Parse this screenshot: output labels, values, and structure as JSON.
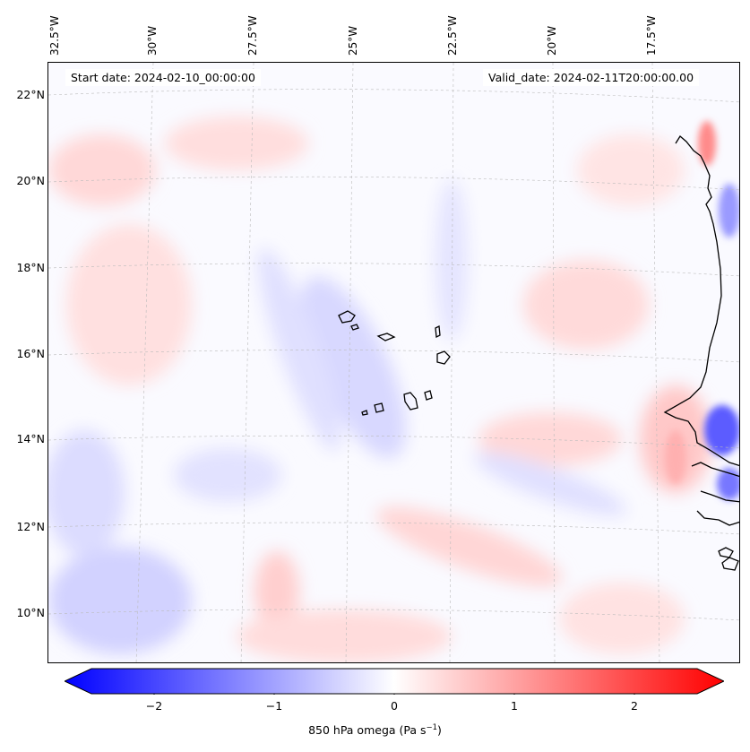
{
  "header": {
    "start_date": "Start date: 2024-02-10_00:00:00",
    "valid_date": "Valid_date: 2024-02-11T20:00:00.00"
  },
  "longitude_labels": [
    "32.5°W",
    "30°W",
    "27.5°W",
    "25°W",
    "22.5°W",
    "20°W",
    "17.5°W"
  ],
  "latitude_labels": [
    "22°N",
    "20°N",
    "18°N",
    "16°N",
    "14°N",
    "12°N",
    "10°N"
  ],
  "colorbar": {
    "tick_labels": [
      "−2",
      "−1",
      "0",
      "1",
      "2"
    ],
    "label_main": "850 hPa omega (Pa s",
    "label_exp": "−1",
    "label_end": ")",
    "min": -2.6,
    "max": 2.6,
    "colors": {
      "negative": "#0000ff",
      "zero": "#ffffff",
      "positive": "#ff0000"
    }
  },
  "colors": {
    "coastline": "#000000",
    "grid": "#bbbbbb"
  }
}
